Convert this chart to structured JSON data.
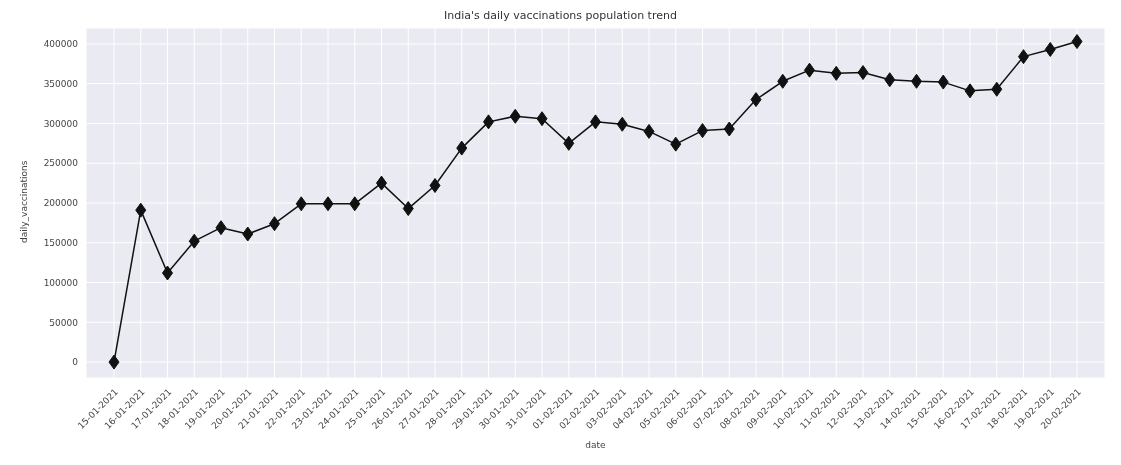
{
  "chart_data": {
    "type": "line",
    "title": "India's daily vaccinations population trend",
    "xlabel": "date",
    "ylabel": "daily_vaccinations",
    "categories": [
      "15-01-2021",
      "16-01-2021",
      "17-01-2021",
      "18-01-2021",
      "19-01-2021",
      "20-01-2021",
      "21-01-2021",
      "22-01-2021",
      "23-01-2021",
      "24-01-2021",
      "25-01-2021",
      "26-01-2021",
      "27-01-2021",
      "28-01-2021",
      "29-01-2021",
      "30-01-2021",
      "31-01-2021",
      "01-02-2021",
      "02-02-2021",
      "03-02-2021",
      "04-02-2021",
      "05-02-2021",
      "06-02-2021",
      "07-02-2021",
      "08-02-2021",
      "09-02-2021",
      "10-02-2021",
      "11-02-2021",
      "12-02-2021",
      "13-02-2021",
      "14-02-2021",
      "15-02-2021",
      "16-02-2021",
      "17-02-2021",
      "18-02-2021",
      "19-02-2021",
      "20-02-2021"
    ],
    "series": [
      {
        "color": "#111111",
        "values": [
          0,
          191000,
          112000,
          152000,
          169000,
          161000,
          174000,
          199000,
          199000,
          199000,
          225000,
          193000,
          222000,
          269000,
          302000,
          309000,
          306000,
          275000,
          302000,
          299000,
          290000,
          274000,
          291000,
          293000,
          330000,
          353000,
          367000,
          363000,
          364000,
          355000,
          353000,
          352000,
          341000,
          343000,
          384000,
          393000,
          403000
        ]
      }
    ],
    "ylim": [
      -20000,
      420000
    ],
    "yticks": [
      0,
      50000,
      100000,
      150000,
      200000,
      250000,
      300000,
      350000,
      400000
    ],
    "grid": true,
    "marker": "diamond",
    "line_style": "solid",
    "legend": false
  }
}
